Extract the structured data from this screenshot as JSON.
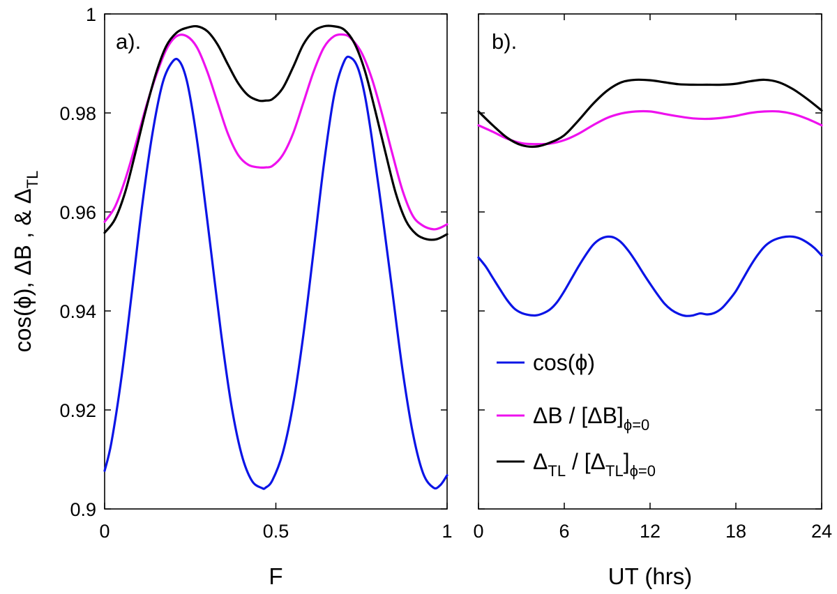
{
  "chart_data": [
    {
      "type": "line",
      "panel_label": "a).",
      "xlabel": "F",
      "ylabel": {
        "main": "cos(ϕ), ΔB , & Δ",
        "sub": "TL"
      },
      "xlim": [
        0,
        1
      ],
      "ylim": [
        0.9,
        1
      ],
      "xticks": [
        0,
        0.5,
        1
      ],
      "xtick_labels": [
        "0",
        "0.5",
        "1"
      ],
      "yticks": [
        0.9,
        0.92,
        0.94,
        0.96,
        0.98,
        1
      ],
      "ytick_labels": [
        "0.9",
        "0.92",
        "0.94",
        "0.96",
        "0.98",
        "1"
      ],
      "grid": false,
      "series": [
        {
          "name": "cos(ϕ)",
          "color": "#0a14e6",
          "x": [
            0,
            0.02,
            0.05,
            0.08,
            0.11,
            0.14,
            0.17,
            0.2,
            0.22,
            0.24,
            0.26,
            0.28,
            0.31,
            0.34,
            0.37,
            0.4,
            0.43,
            0.46,
            0.47,
            0.49,
            0.52,
            0.55,
            0.58,
            0.61,
            0.64,
            0.67,
            0.7,
            0.72,
            0.74,
            0.76,
            0.78,
            0.81,
            0.84,
            0.87,
            0.9,
            0.93,
            0.96,
            0.98,
            1
          ],
          "y": [
            0.9077,
            0.9135,
            0.927,
            0.944,
            0.9615,
            0.976,
            0.9862,
            0.9905,
            0.9903,
            0.9865,
            0.979,
            0.9693,
            0.9525,
            0.9355,
            0.921,
            0.911,
            0.9057,
            0.9042,
            0.9043,
            0.9058,
            0.9113,
            0.921,
            0.935,
            0.952,
            0.9695,
            0.9835,
            0.9905,
            0.9911,
            0.989,
            0.9835,
            0.975,
            0.96,
            0.944,
            0.928,
            0.9153,
            0.9072,
            0.9043,
            0.9048,
            0.9068
          ]
        },
        {
          "name": "ΔB / [ΔB]",
          "name_sub": "ϕ=0",
          "color": "#ee11ee",
          "x": [
            0,
            0.03,
            0.06,
            0.09,
            0.12,
            0.15,
            0.18,
            0.21,
            0.24,
            0.27,
            0.3,
            0.33,
            0.36,
            0.39,
            0.42,
            0.45,
            0.47,
            0.49,
            0.52,
            0.55,
            0.58,
            0.61,
            0.64,
            0.67,
            0.7,
            0.72,
            0.75,
            0.78,
            0.81,
            0.84,
            0.87,
            0.9,
            0.93,
            0.96,
            0.98,
            1
          ],
          "y": [
            0.958,
            0.961,
            0.9665,
            0.9735,
            0.981,
            0.9875,
            0.9928,
            0.9955,
            0.9955,
            0.9932,
            0.9883,
            0.982,
            0.9758,
            0.9715,
            0.9695,
            0.969,
            0.969,
            0.9693,
            0.9715,
            0.9758,
            0.982,
            0.9883,
            0.9932,
            0.9955,
            0.9958,
            0.995,
            0.9922,
            0.987,
            0.9798,
            0.9718,
            0.9643,
            0.9592,
            0.9572,
            0.9565,
            0.9568,
            0.9575
          ]
        },
        {
          "name": "Δ",
          "name_sub": "TL",
          "name_mid": " / [Δ",
          "name_mid_sub": "TL",
          "name_end": "]",
          "name_end_sub": "ϕ=0",
          "color": "#000000",
          "x": [
            0,
            0.03,
            0.06,
            0.09,
            0.12,
            0.15,
            0.18,
            0.21,
            0.24,
            0.27,
            0.3,
            0.33,
            0.36,
            0.39,
            0.42,
            0.45,
            0.47,
            0.49,
            0.52,
            0.55,
            0.58,
            0.61,
            0.64,
            0.67,
            0.7,
            0.73,
            0.76,
            0.79,
            0.82,
            0.85,
            0.88,
            0.91,
            0.94,
            0.97,
            1
          ],
          "y": [
            0.9558,
            0.9585,
            0.964,
            0.972,
            0.9805,
            0.988,
            0.9935,
            0.9962,
            0.9972,
            0.9975,
            0.9965,
            0.9938,
            0.9898,
            0.986,
            0.9835,
            0.9825,
            0.9825,
            0.9828,
            0.985,
            0.9892,
            0.9938,
            0.9965,
            0.9975,
            0.9975,
            0.9968,
            0.994,
            0.9885,
            0.9805,
            0.972,
            0.9638,
            0.9582,
            0.9555,
            0.9545,
            0.9545,
            0.9555
          ]
        }
      ]
    },
    {
      "type": "line",
      "panel_label": "b).",
      "xlabel": "UT (hrs)",
      "xlim": [
        0,
        24
      ],
      "ylim": [
        0.9,
        1
      ],
      "xticks": [
        0,
        6,
        12,
        18,
        24
      ],
      "xtick_labels": [
        "0",
        "6",
        "12",
        "18",
        "24"
      ],
      "yticks": [
        0.9,
        0.92,
        0.94,
        0.96,
        0.98,
        1
      ],
      "grid": false,
      "legend_position": "bottom-right",
      "series": [
        {
          "name": "cos(ϕ)",
          "color": "#0a14e6",
          "x": [
            0,
            0.5,
            1,
            1.5,
            2,
            2.5,
            3,
            3.5,
            4,
            4.5,
            5,
            5.5,
            6,
            6.5,
            7,
            7.5,
            8,
            8.5,
            9,
            9.5,
            10,
            10.5,
            11,
            11.5,
            12,
            12.5,
            13,
            13.5,
            14,
            14.5,
            15,
            15.5,
            16,
            16.5,
            17,
            17.5,
            18,
            18.5,
            19,
            19.5,
            20,
            20.5,
            21,
            21.5,
            22,
            22.5,
            23,
            23.5,
            24
          ],
          "y": [
            0.9508,
            0.949,
            0.9467,
            0.9444,
            0.9422,
            0.9405,
            0.9396,
            0.9392,
            0.9391,
            0.9395,
            0.9403,
            0.9418,
            0.944,
            0.9465,
            0.949,
            0.9513,
            0.9533,
            0.9545,
            0.955,
            0.9548,
            0.9538,
            0.9521,
            0.95,
            0.9477,
            0.9455,
            0.9434,
            0.9415,
            0.9402,
            0.9394,
            0.939,
            0.9391,
            0.9395,
            0.9393,
            0.9396,
            0.9405,
            0.9421,
            0.944,
            0.9465,
            0.949,
            0.9512,
            0.953,
            0.9541,
            0.9547,
            0.955,
            0.955,
            0.9546,
            0.9538,
            0.9527,
            0.9512
          ]
        },
        {
          "name": "ΔB / [ΔB]",
          "name_sub": "ϕ=0",
          "color": "#ee11ee",
          "x": [
            0,
            1,
            2,
            3,
            4,
            5,
            6,
            7,
            8,
            9,
            10,
            11,
            12,
            13,
            14,
            15,
            16,
            17,
            18,
            19,
            20,
            21,
            22,
            23,
            24
          ],
          "y": [
            0.9775,
            0.9762,
            0.9748,
            0.9739,
            0.9737,
            0.9738,
            0.9745,
            0.9758,
            0.9775,
            0.979,
            0.9799,
            0.9803,
            0.9803,
            0.9798,
            0.9793,
            0.9789,
            0.9788,
            0.979,
            0.9794,
            0.98,
            0.9803,
            0.9803,
            0.9798,
            0.9788,
            0.9775
          ]
        },
        {
          "name": "Δ",
          "name_sub": "TL",
          "name_mid": " / [Δ",
          "name_mid_sub": "TL",
          "name_end": "]",
          "name_end_sub": "ϕ=0",
          "color": "#000000",
          "x": [
            0,
            1,
            2,
            3,
            4,
            5,
            6,
            7,
            8,
            9,
            10,
            11,
            12,
            13,
            14,
            15,
            16,
            17,
            18,
            19,
            20,
            21,
            22,
            23,
            24
          ],
          "y": [
            0.9803,
            0.9775,
            0.975,
            0.9735,
            0.9732,
            0.974,
            0.9755,
            0.9785,
            0.9818,
            0.9845,
            0.9862,
            0.9867,
            0.9866,
            0.9862,
            0.9858,
            0.9857,
            0.9857,
            0.9857,
            0.9859,
            0.9864,
            0.9867,
            0.9862,
            0.9848,
            0.9828,
            0.9805
          ]
        }
      ]
    }
  ]
}
